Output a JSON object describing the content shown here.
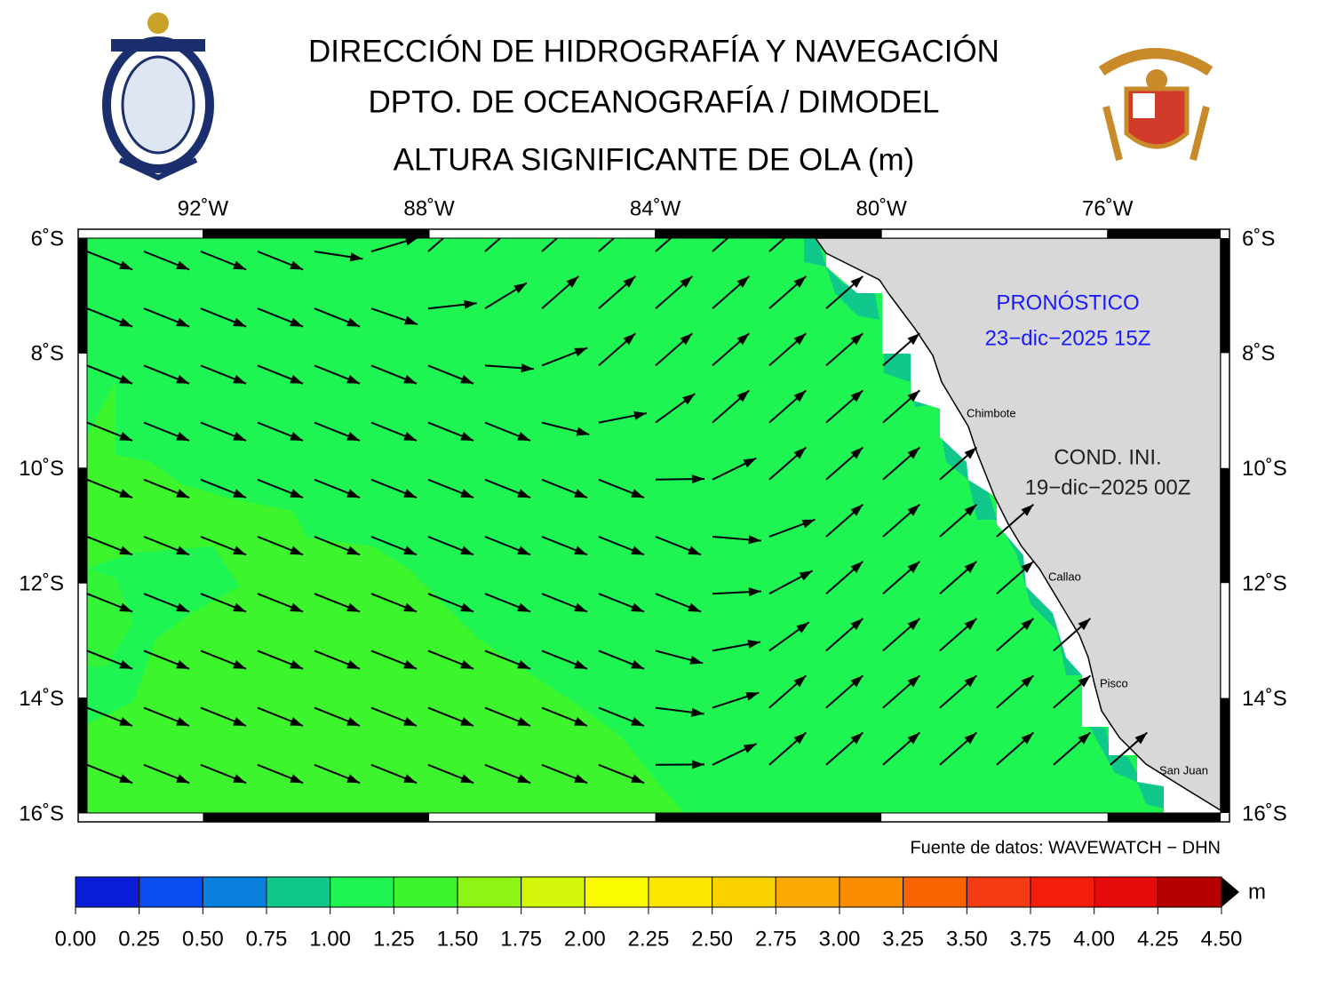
{
  "header": {
    "lines": [
      "DIRECCIÓN DE HIDROGRAFÍA Y NAVEGACIÓN",
      "DPTO. DE OCEANOGRAFÍA / DIMODEL",
      "ALTURA SIGNIFICANTE DE OLA (m)"
    ]
  },
  "map": {
    "xlim": [
      -94.05,
      -74.0
    ],
    "ylim": [
      -16,
      -6
    ],
    "xticks": [
      {
        "value": -92,
        "label": "92˚W"
      },
      {
        "value": -88,
        "label": "88˚W"
      },
      {
        "value": -84,
        "label": "84˚W"
      },
      {
        "value": -80,
        "label": "80˚W"
      },
      {
        "value": -76,
        "label": "76˚W"
      }
    ],
    "yticks": [
      {
        "value": -6,
        "label": "6˚S"
      },
      {
        "value": -8,
        "label": "8˚S"
      },
      {
        "value": -10,
        "label": "10˚S"
      },
      {
        "value": -12,
        "label": "12˚S"
      },
      {
        "value": -14,
        "label": "14˚S"
      },
      {
        "value": -16,
        "label": "16˚S"
      }
    ],
    "forecast": [
      "PRONÓSTICO",
      "23−dic−2025 15Z"
    ],
    "initial": [
      "COND. INI.",
      "19−dic−2025 00Z"
    ],
    "cities": [
      "Chimbote",
      "Callao",
      "Pisco",
      "San Juan"
    ],
    "source": "Fuente de datos: WAVEWATCH − DHN"
  },
  "colorbar": {
    "unit": "m",
    "ticks": [
      {
        "value": 0,
        "label": "0.00"
      },
      {
        "value": 0.25,
        "label": "0.25"
      },
      {
        "value": 0.5,
        "label": "0.50"
      },
      {
        "value": 0.75,
        "label": "0.75"
      },
      {
        "value": 1,
        "label": "1.00"
      },
      {
        "value": 1.25,
        "label": "1.25"
      },
      {
        "value": 1.5,
        "label": "1.50"
      },
      {
        "value": 1.75,
        "label": "1.75"
      },
      {
        "value": 2,
        "label": "2.00"
      },
      {
        "value": 2.25,
        "label": "2.25"
      },
      {
        "value": 2.5,
        "label": "2.50"
      },
      {
        "value": 2.75,
        "label": "2.75"
      },
      {
        "value": 3,
        "label": "3.00"
      },
      {
        "value": 3.25,
        "label": "3.25"
      },
      {
        "value": 3.5,
        "label": "3.50"
      },
      {
        "value": 3.75,
        "label": "3.75"
      },
      {
        "value": 4,
        "label": "4.00"
      },
      {
        "value": 4.25,
        "label": "4.25"
      },
      {
        "value": 4.5,
        "label": "4.50"
      }
    ],
    "colors": [
      "#0a1ed8",
      "#0a4ef0",
      "#0a80dd",
      "#10c88c",
      "#1ef552",
      "#3cf52c",
      "#8cf514",
      "#d2f50a",
      "#fafa00",
      "#fae600",
      "#fad200",
      "#faaa00",
      "#fa8c00",
      "#fa6400",
      "#f53c14",
      "#f51e0a",
      "#e60a0a",
      "#b40000"
    ]
  }
}
